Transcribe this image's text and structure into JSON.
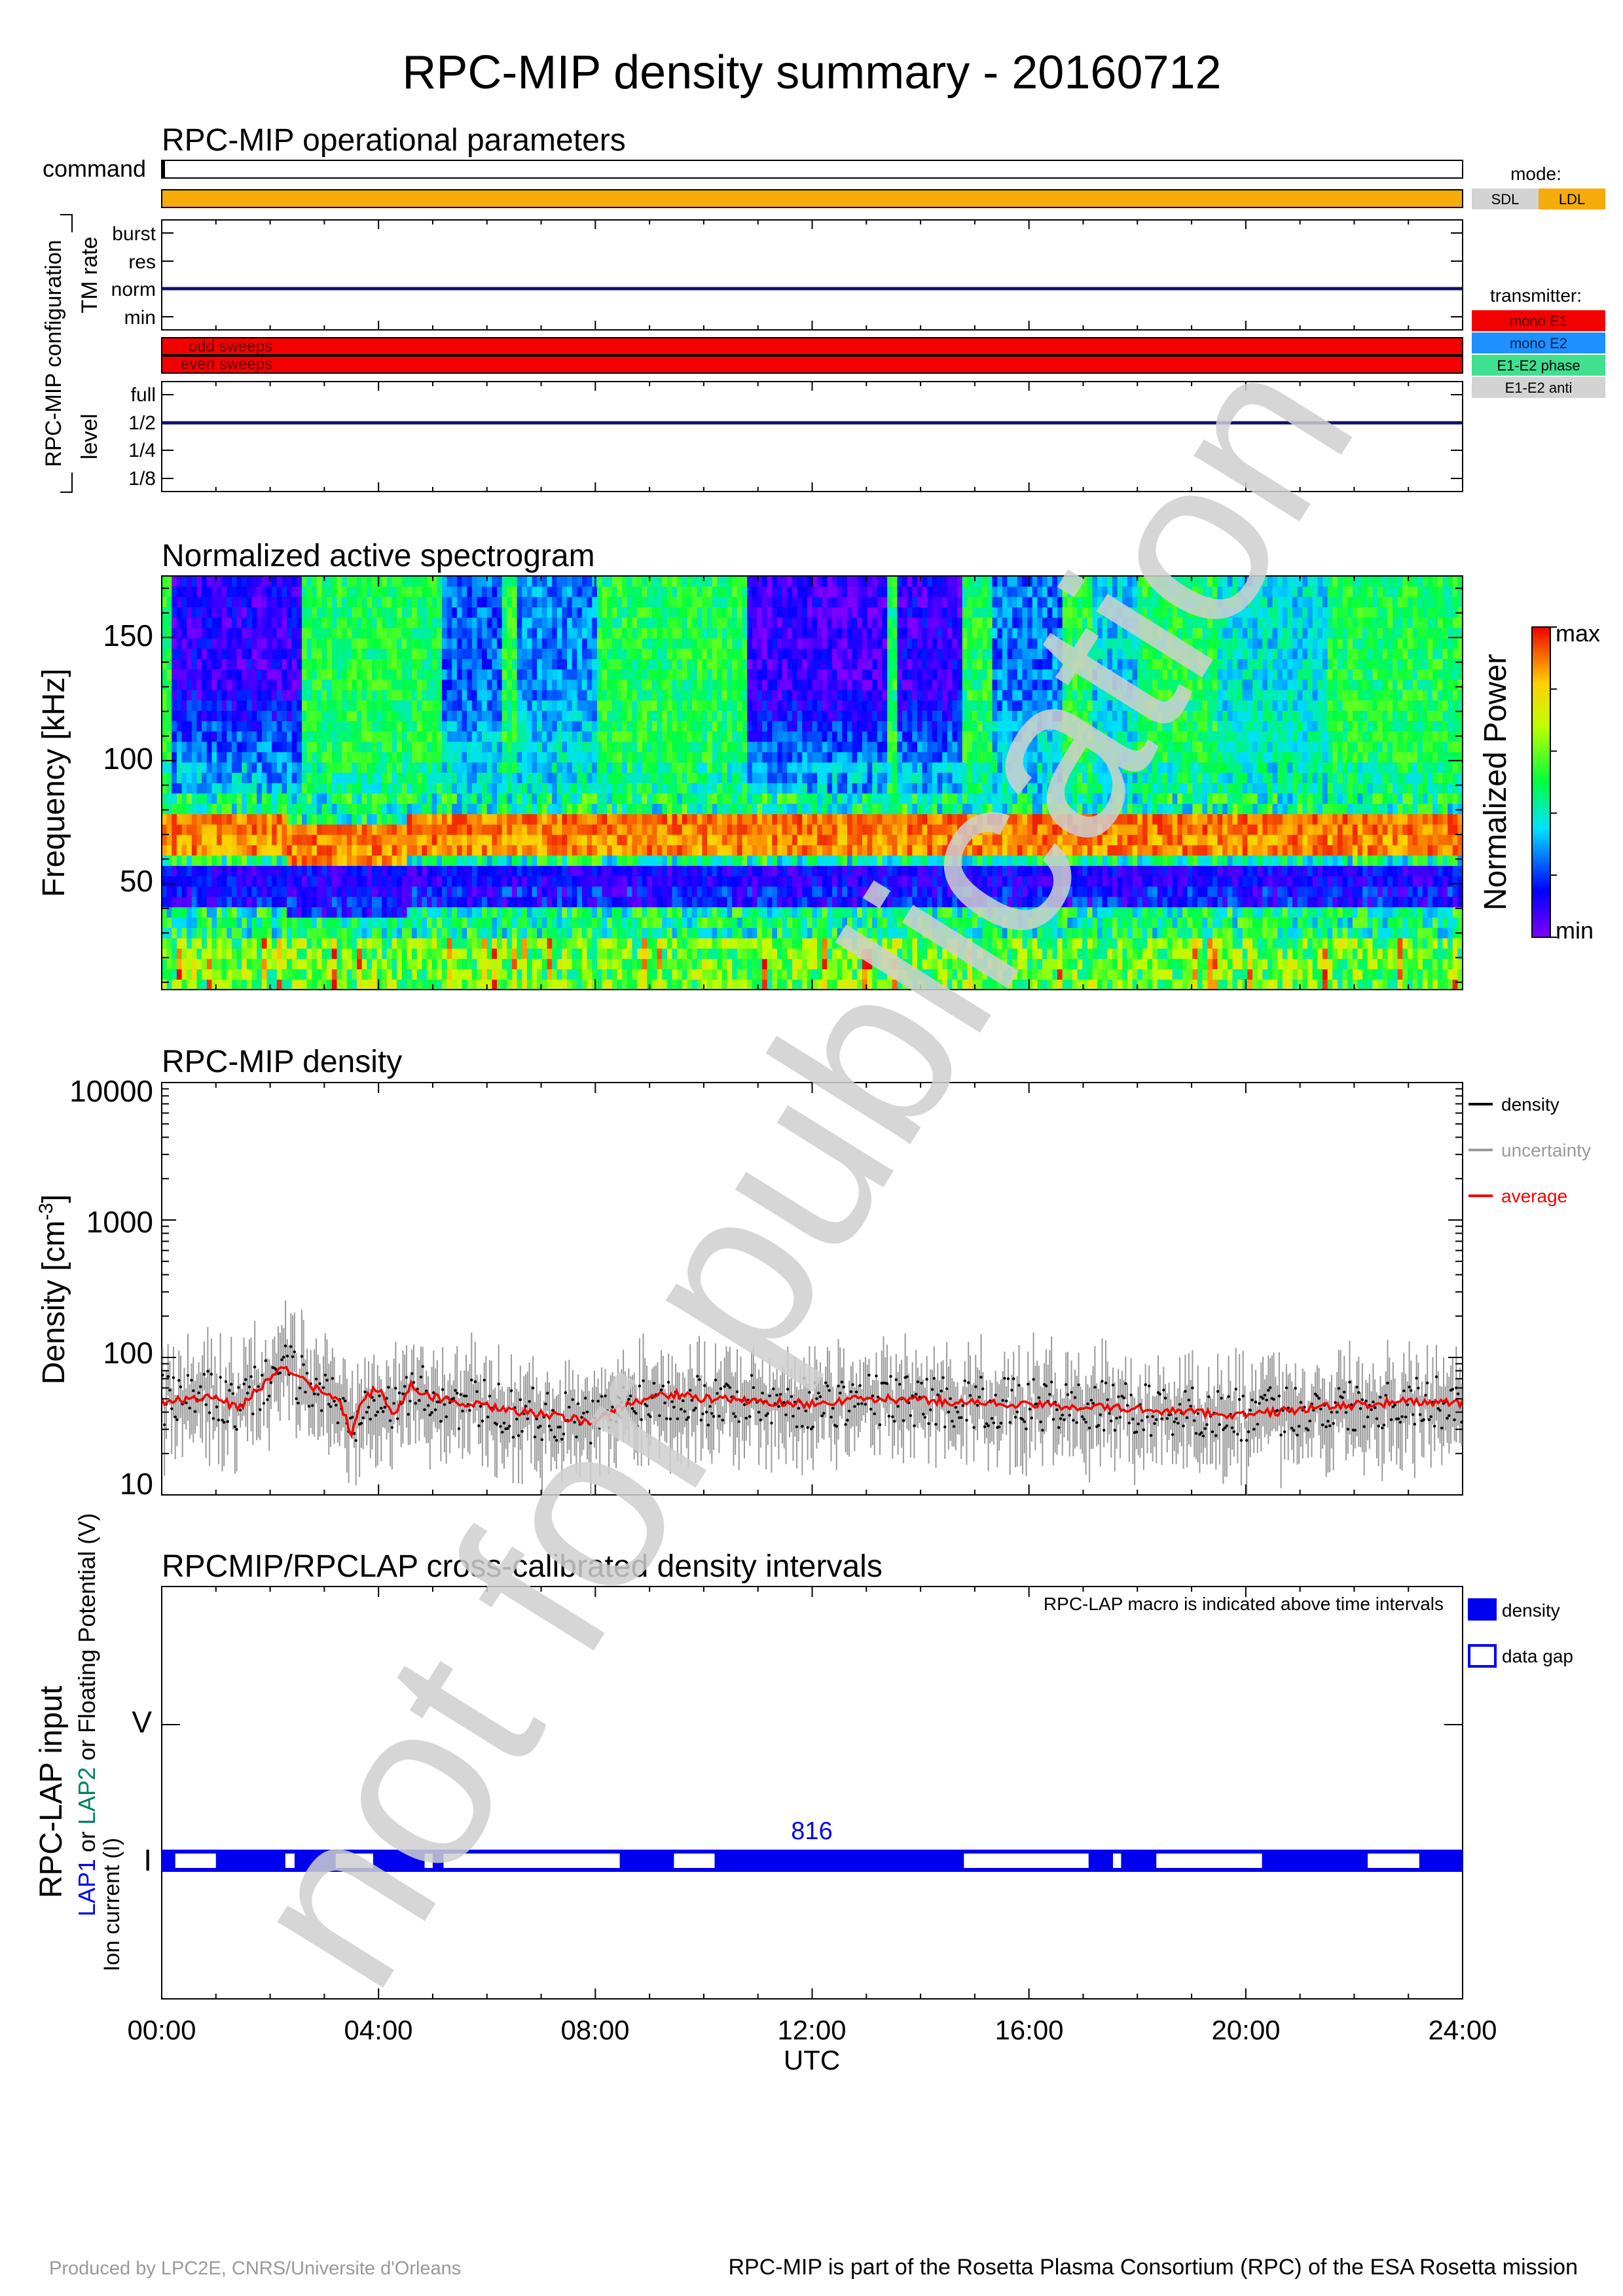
{
  "title": "RPC-MIP density summary - 20160712",
  "watermark": "not for publication",
  "footer": {
    "left": "Produced by LPC2E, CNRS/Universite d'Orleans",
    "right": "RPC-MIP is part of the Rosetta Plasma Consortium (RPC) of the ESA Rosetta mission"
  },
  "colors": {
    "orange": "#f5ab0a",
    "navy": "#10106e",
    "red": "#f50000",
    "blue": "#0000f0",
    "gray": "#9a9a9a",
    "watermark": "#d0d0d0",
    "teal": "#008060"
  },
  "ops": {
    "title": "RPC-MIP operational parameters",
    "command_label": "command",
    "config_label": "RPC-MIP configuration",
    "tm_rate_label": "TM rate",
    "tm_rate_levels": [
      "burst",
      "res",
      "norm",
      "min"
    ],
    "tm_rate_value": "norm",
    "sweep_labels": [
      "odd sweeps",
      "even sweeps"
    ],
    "level_label": "level",
    "level_levels": [
      "full",
      "1/2",
      "1/4",
      "1/8"
    ],
    "level_value": "1/2",
    "mode_legend": {
      "title": "mode:",
      "items": [
        "SDL",
        "LDL"
      ],
      "colors": [
        "#d3d3d3",
        "#f5ab0a"
      ],
      "active": "LDL"
    },
    "transmitter_legend": {
      "title": "transmitter:",
      "items": [
        "mono E1",
        "mono E2",
        "E1-E2 phase",
        "E1-E2 anti"
      ],
      "colors": [
        "#f50000",
        "#1e90ff",
        "#40e090",
        "#d3d3d3"
      ],
      "active": "mono E1"
    }
  },
  "chart_data": [
    {
      "type": "heatmap",
      "title": "Normalized active spectrogram",
      "ylabel": "Frequency [kHz]",
      "yticks": [
        "50",
        "100",
        "150"
      ],
      "ytick_values": [
        50,
        100,
        150
      ],
      "ylim": [
        7,
        175
      ],
      "xlim_hours": [
        0,
        24
      ],
      "colorbar": {
        "label": "Normalized Power",
        "max_label": "max",
        "min_label": "min"
      },
      "bands": [
        {
          "name": "red_band_upper",
          "f_khz": 76
        },
        {
          "name": "red_band_lower",
          "f_khz": 66
        },
        {
          "name": "blue_band",
          "f_khz": 55
        }
      ]
    },
    {
      "type": "scatter",
      "title": "RPC-MIP density",
      "ylabel": "Density [cm-3]",
      "ylabel_unit_base": "Density [cm",
      "ylabel_unit_exp": "-3",
      "ylabel_unit_end": "]",
      "yscale": "log",
      "ylim": [
        10,
        10000
      ],
      "yticks": [
        "10",
        "100",
        "1000",
        "10000"
      ],
      "ytick_values": [
        10,
        100,
        1000,
        10000
      ],
      "xlim_hours": [
        0,
        24
      ],
      "legend": [
        {
          "name": "density",
          "color": "#000000"
        },
        {
          "name": "uncertainty",
          "color": "#9a9a9a"
        },
        {
          "name": "average",
          "color": "#f50000"
        }
      ],
      "average_curve": {
        "hours": [
          0,
          0.5,
          1,
          1.4,
          1.8,
          2.2,
          2.6,
          3.0,
          3.3,
          3.5,
          3.7,
          4.0,
          4.3,
          4.6,
          5.0,
          5.5,
          6.0,
          6.5,
          7.0,
          7.5,
          8.0,
          8.5,
          9.0,
          9.5,
          10,
          11,
          12,
          13,
          14,
          15,
          16,
          17,
          18,
          19,
          20,
          21,
          22,
          23,
          24
        ],
        "density": [
          48,
          50,
          52,
          42,
          60,
          88,
          68,
          55,
          45,
          28,
          50,
          60,
          38,
          62,
          52,
          46,
          44,
          40,
          39,
          36,
          34,
          44,
          52,
          54,
          50,
          48,
          46,
          50,
          49,
          47,
          45,
          44,
          42,
          40,
          38,
          42,
          45,
          48,
          46
        ]
      }
    },
    {
      "type": "table",
      "title": "RPCMIP/RPCLAP cross-calibrated density intervals",
      "ylabel": "RPC-LAP input",
      "sublabel_prefix": "LAP1",
      "sublabel_or": " or ",
      "sublabel_lap2": "LAP2",
      "sublabel_potential": " or Floating Potential (V)",
      "sublabel_current": "Ion current (I)",
      "y_categories": [
        "V",
        "I"
      ],
      "note": "RPC-LAP macro is indicated above time intervals",
      "macro_label": "816",
      "xlim_hours": [
        0,
        24
      ],
      "xticks": [
        "00:00",
        "04:00",
        "08:00",
        "12:00",
        "16:00",
        "20:00",
        "24:00"
      ],
      "xlabel": "UTC",
      "legend": [
        "density",
        "data gap"
      ],
      "row": "I",
      "gaps_hours": [
        [
          0.25,
          1.0
        ],
        [
          2.28,
          2.45
        ],
        [
          3.21,
          3.9
        ],
        [
          4.85,
          5.0
        ],
        [
          5.2,
          8.45
        ],
        [
          9.45,
          10.2
        ],
        [
          14.8,
          17.1
        ],
        [
          17.55,
          17.7
        ],
        [
          18.35,
          20.3
        ],
        [
          22.25,
          23.2
        ]
      ]
    }
  ]
}
